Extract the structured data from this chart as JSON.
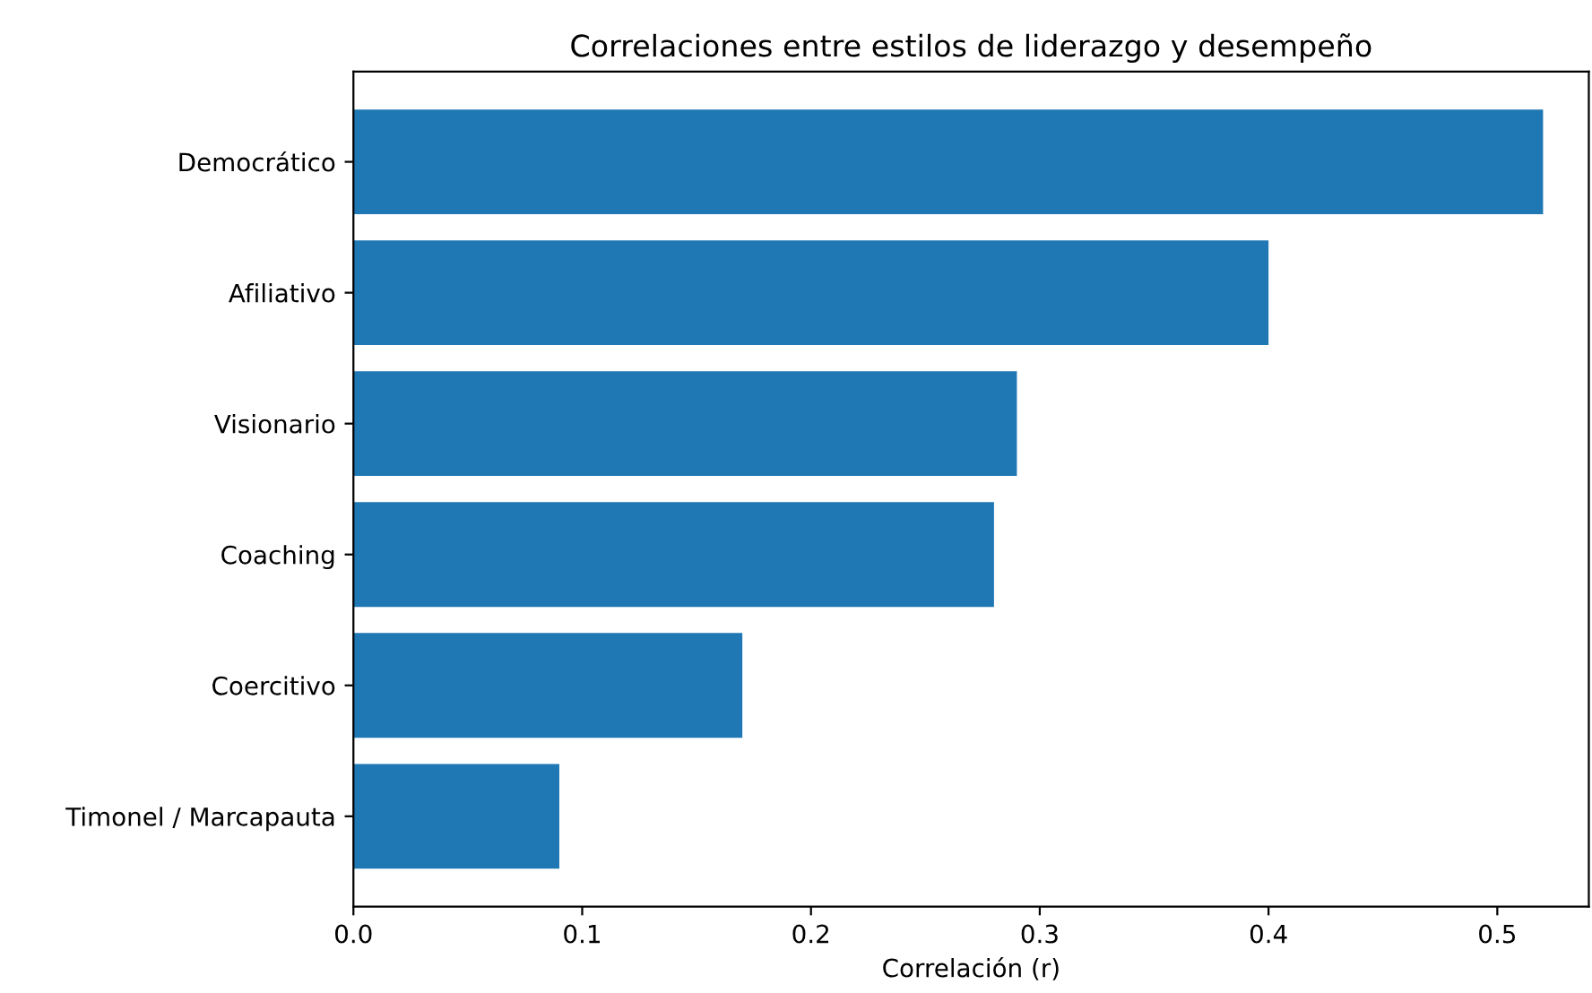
{
  "chart_data": {
    "type": "bar",
    "orientation": "horizontal",
    "title": "Correlaciones entre estilos de liderazgo y desempeño",
    "xlabel": "Correlación (r)",
    "categories": [
      "Democrático",
      "Afiliativo",
      "Visionario",
      "Coaching",
      "Coercitivo",
      "Timonel / Marcapauta"
    ],
    "values": [
      0.52,
      0.4,
      0.29,
      0.28,
      0.17,
      0.09
    ],
    "color": "#1f77b4",
    "xlim": [
      0,
      0.54
    ],
    "xticks": [
      {
        "value": 0,
        "label": "0.0"
      },
      0.1,
      0.2,
      0.3,
      0.4,
      0.5
    ],
    "grid": false
  }
}
